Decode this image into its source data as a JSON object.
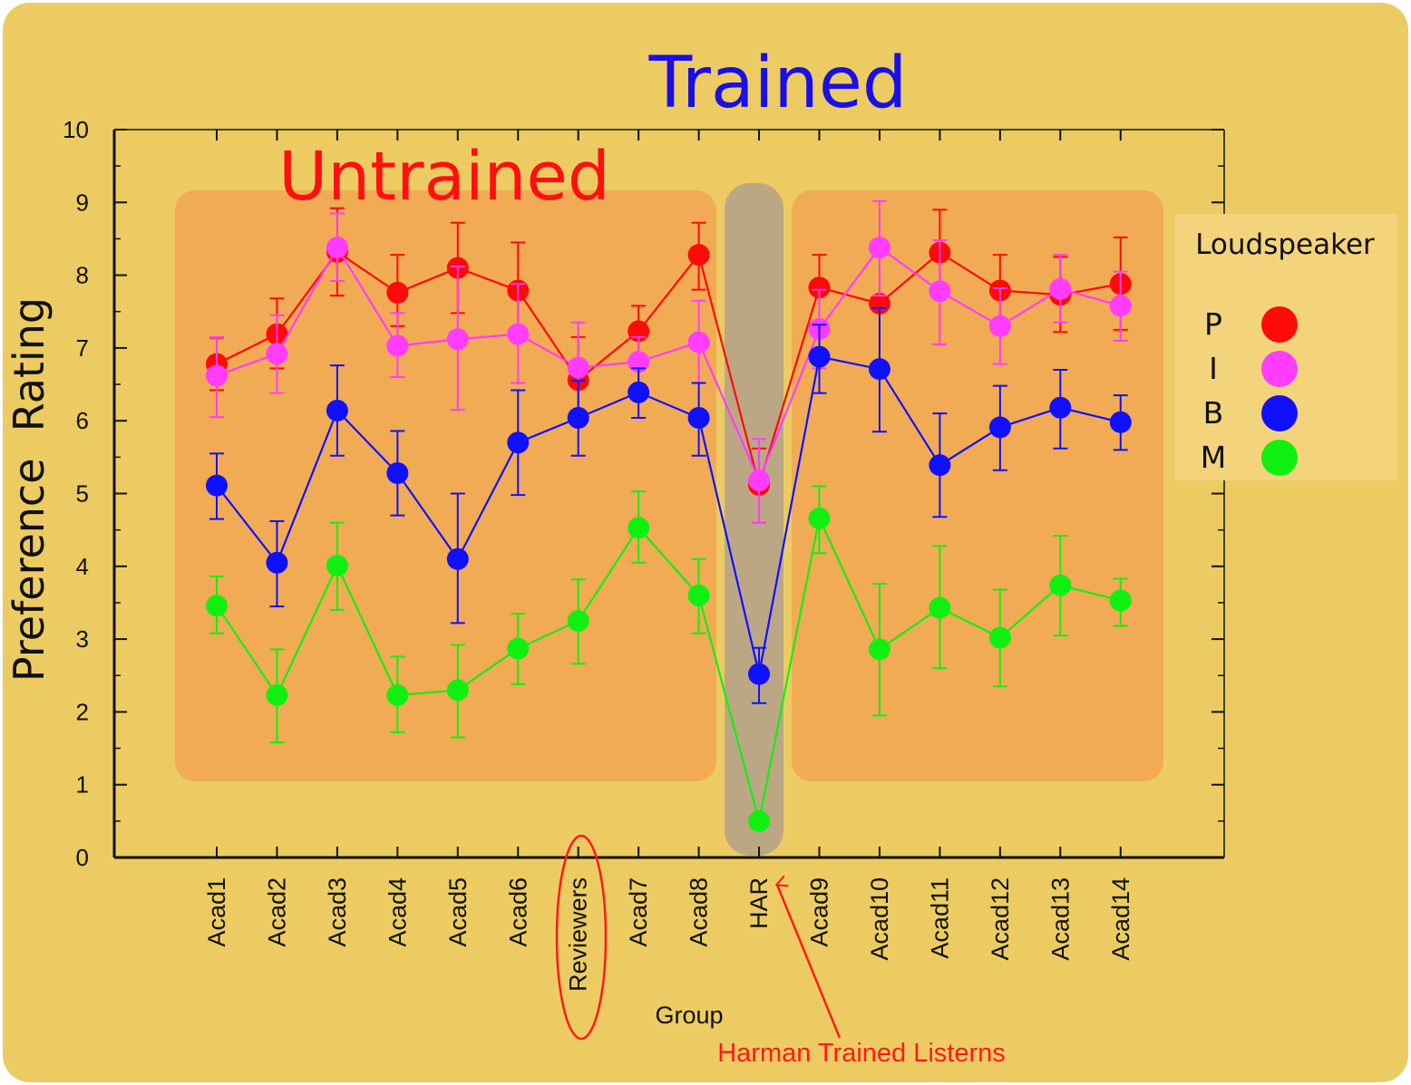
{
  "annotations": {
    "trained": "Trained",
    "untrained": "Untrained",
    "har_note": "Harman Trained Listerns"
  },
  "colors": {
    "background": "#eccc62",
    "panel": "#f2a553",
    "har_band": "#b9a486",
    "legend_bg": "#f3d37c",
    "trained": "#1a0fe6",
    "untrained": "#ff1010",
    "har_note": "#ff1a1a"
  },
  "chart_data": {
    "type": "line",
    "xlabel": "Group",
    "ylabel": "Preference  Rating",
    "ylim": [
      0,
      10
    ],
    "yticks": [
      0,
      1,
      2,
      3,
      4,
      5,
      6,
      7,
      8,
      9,
      10
    ],
    "categories": [
      "Acad1",
      "Acad2",
      "Acad3",
      "Acad4",
      "Acad5",
      "Acad6",
      "Reviewers",
      "Acad7",
      "Acad8",
      "HAR",
      "Acad9",
      "Acad10",
      "Acad11",
      "Acad12",
      "Acad13",
      "Acad14"
    ],
    "legend": {
      "title": "Loudspeaker",
      "position": "right"
    },
    "series": [
      {
        "name": "P",
        "color": "#ff0a0a",
        "values": [
          6.78,
          7.19,
          8.32,
          7.76,
          8.1,
          7.79,
          6.56,
          7.23,
          8.28,
          5.12,
          7.83,
          7.61,
          8.31,
          7.79,
          7.73,
          7.88
        ],
        "err_low": [
          6.42,
          6.72,
          7.72,
          7.3,
          7.48,
          7.12,
          6.0,
          6.88,
          7.8,
          4.6,
          7.35,
          6.8,
          7.7,
          7.28,
          7.22,
          7.25
        ],
        "err_high": [
          7.14,
          7.68,
          8.92,
          8.28,
          8.72,
          8.45,
          7.15,
          7.58,
          8.72,
          5.62,
          8.28,
          8.42,
          8.9,
          8.28,
          8.25,
          8.52
        ]
      },
      {
        "name": "I",
        "color": "#ff3cff",
        "values": [
          6.62,
          6.92,
          8.38,
          7.03,
          7.12,
          7.19,
          6.73,
          6.81,
          7.08,
          5.18,
          7.26,
          8.38,
          7.78,
          7.3,
          7.81,
          7.58
        ],
        "err_low": [
          6.05,
          6.38,
          7.92,
          6.6,
          6.15,
          6.52,
          6.1,
          6.48,
          6.52,
          4.6,
          6.72,
          7.72,
          7.05,
          6.78,
          7.35,
          7.1
        ],
        "err_high": [
          7.15,
          7.45,
          8.85,
          7.48,
          8.12,
          7.88,
          7.35,
          7.15,
          7.65,
          5.75,
          7.8,
          9.02,
          8.48,
          7.82,
          8.28,
          8.05
        ]
      },
      {
        "name": "B",
        "color": "#1010ff",
        "values": [
          5.11,
          4.05,
          6.14,
          5.28,
          4.1,
          5.7,
          6.04,
          6.39,
          6.04,
          2.52,
          6.88,
          6.71,
          5.39,
          5.91,
          6.18,
          5.98
        ],
        "err_low": [
          4.65,
          3.45,
          5.52,
          4.7,
          3.22,
          4.98,
          5.52,
          6.04,
          5.52,
          2.12,
          6.38,
          5.85,
          4.68,
          5.32,
          5.62,
          5.6
        ],
        "err_high": [
          5.55,
          4.62,
          6.76,
          5.86,
          5.0,
          6.42,
          6.55,
          6.72,
          6.52,
          2.88,
          7.32,
          7.55,
          6.1,
          6.48,
          6.7,
          6.35
        ]
      },
      {
        "name": "M",
        "color": "#10f010",
        "values": [
          3.46,
          2.23,
          4.01,
          2.23,
          2.3,
          2.87,
          3.25,
          4.53,
          3.6,
          0.5,
          4.66,
          2.86,
          3.43,
          3.02,
          3.74,
          3.53
        ],
        "err_low": [
          3.08,
          1.58,
          3.4,
          1.72,
          1.65,
          2.38,
          2.66,
          4.05,
          3.08,
          0.5,
          4.18,
          1.95,
          2.6,
          2.35,
          3.05,
          3.18
        ],
        "err_high": [
          3.86,
          2.86,
          4.6,
          2.76,
          2.92,
          3.35,
          3.82,
          5.03,
          4.1,
          0.5,
          5.1,
          3.76,
          4.28,
          3.68,
          4.42,
          3.83
        ]
      }
    ]
  }
}
